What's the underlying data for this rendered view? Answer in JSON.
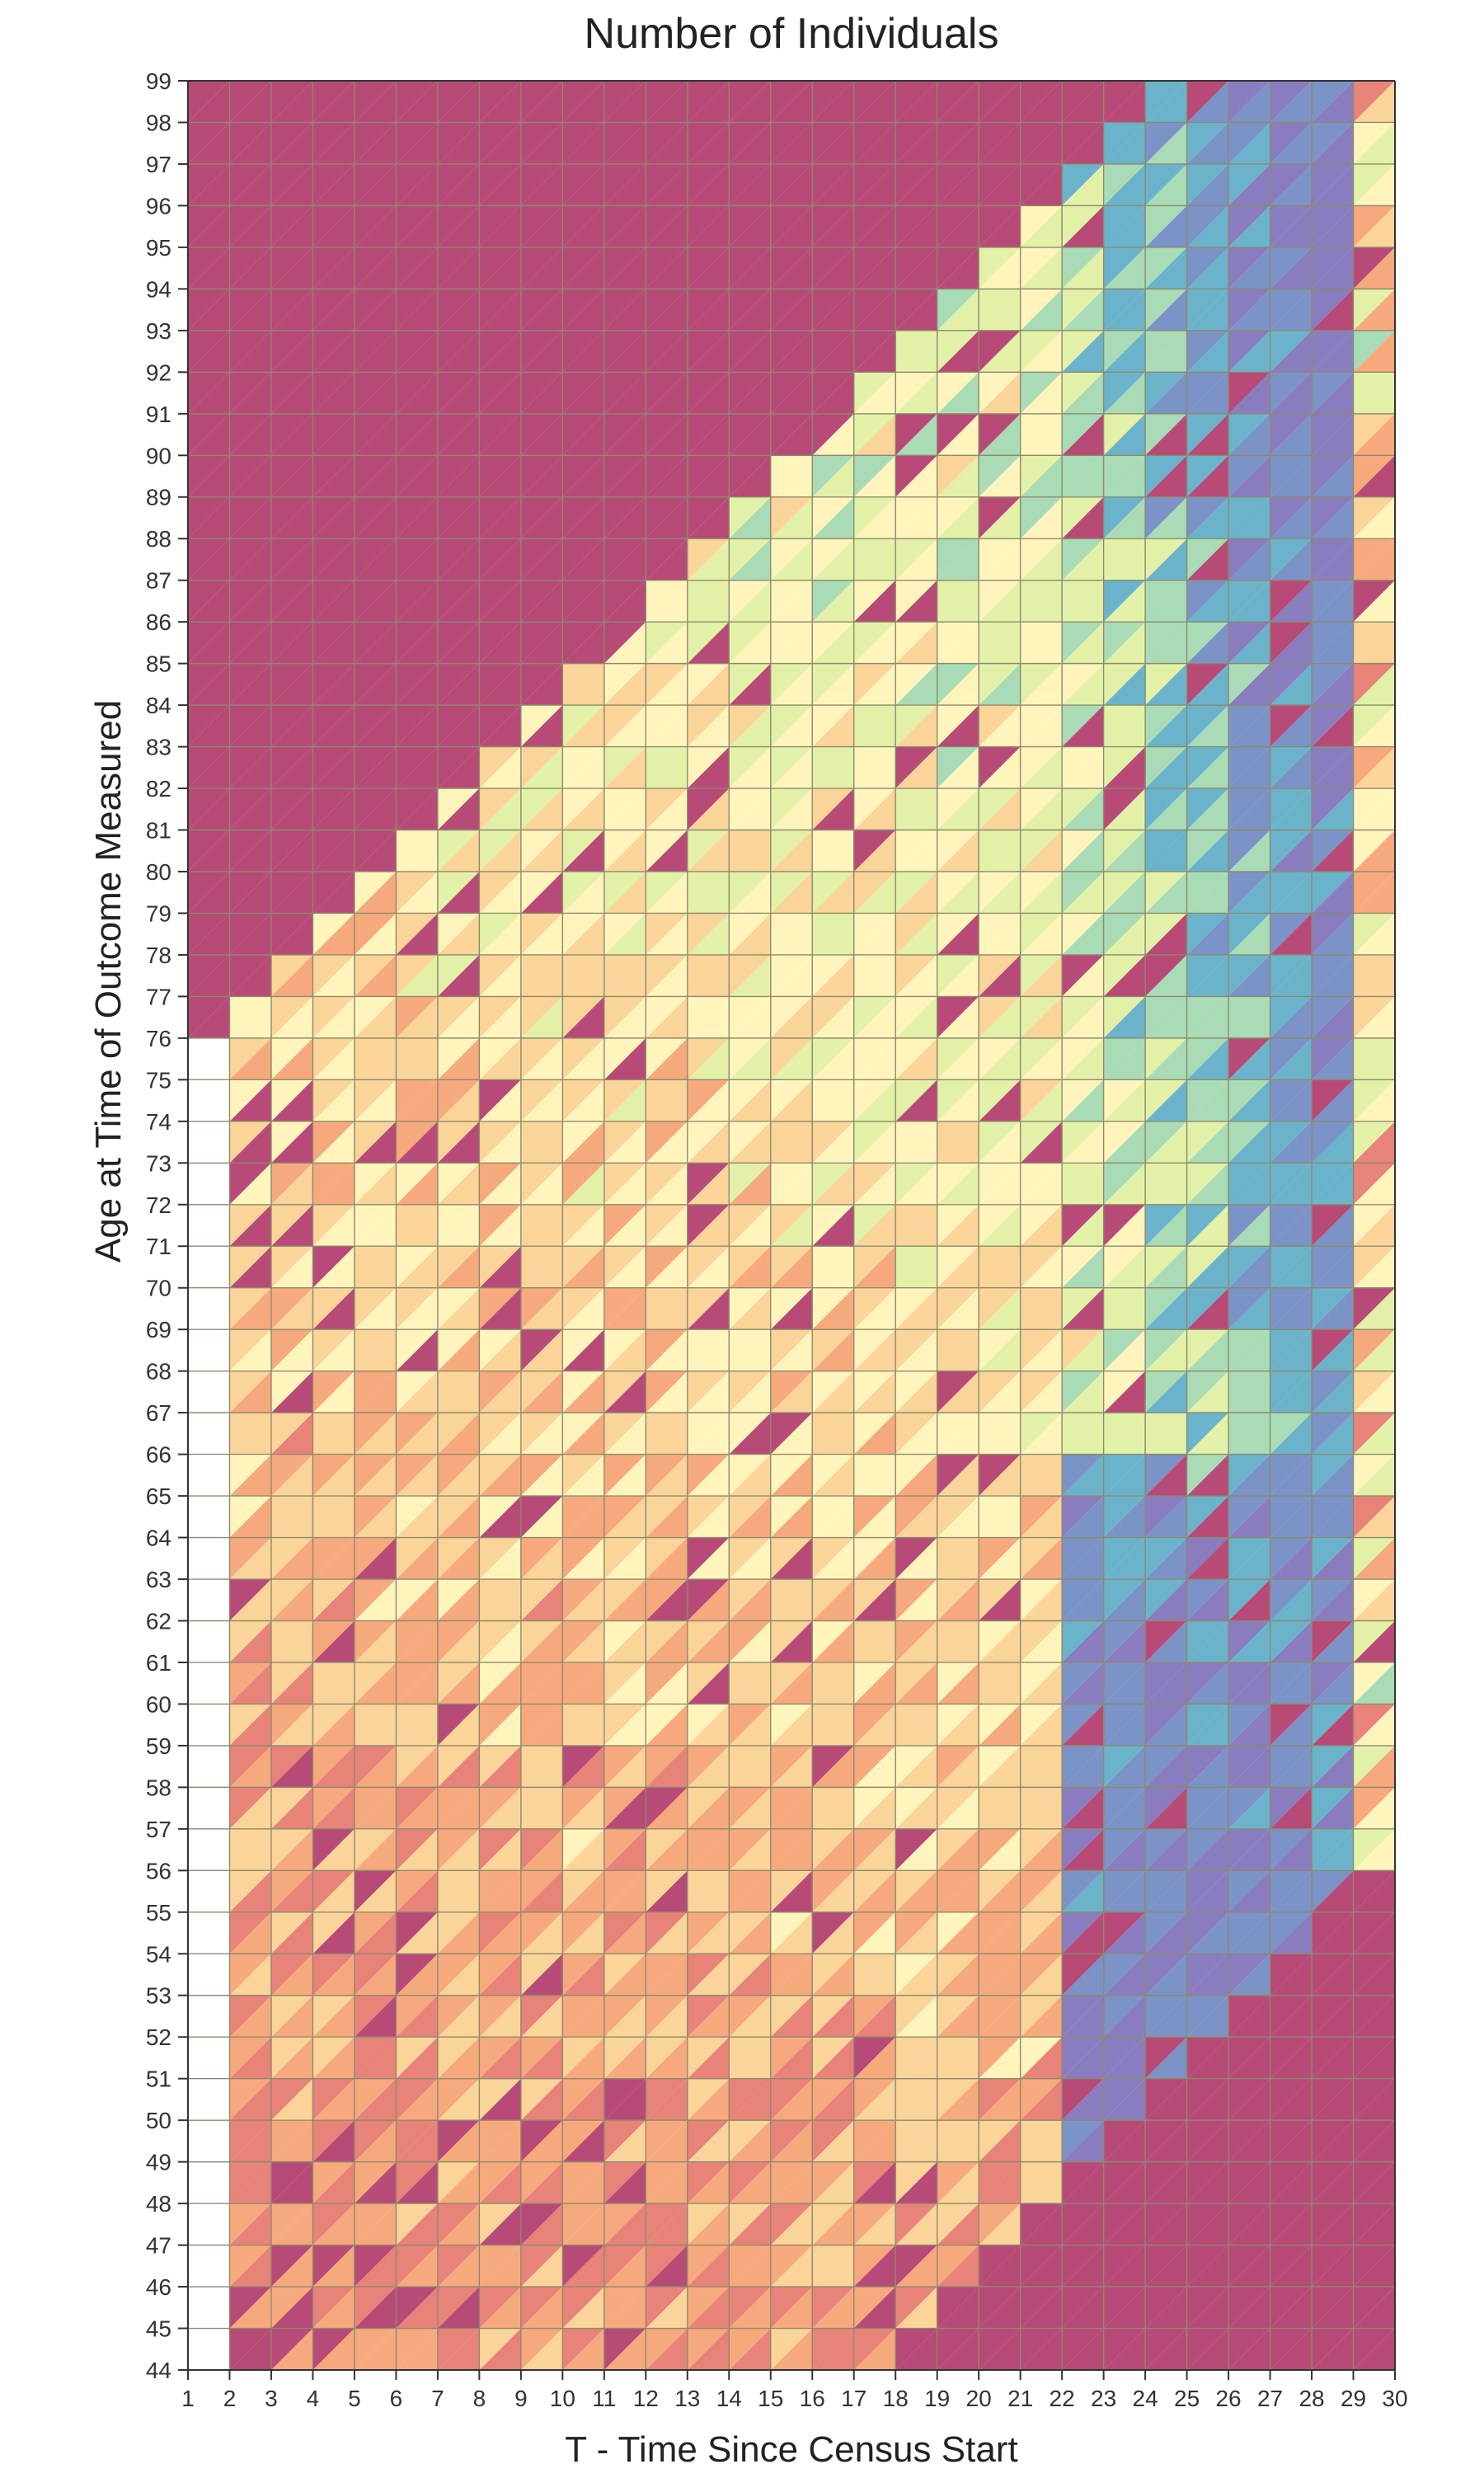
{
  "chart_data": {
    "type": "heatmap",
    "title": "Number of Individuals",
    "xlabel": "T - Time Since Census Start",
    "ylabel": "Age at Time of Outcome Measured",
    "x_ticks": [
      1,
      2,
      3,
      4,
      5,
      6,
      7,
      8,
      9,
      10,
      11,
      12,
      13,
      14,
      15,
      16,
      17,
      18,
      19,
      20,
      21,
      22,
      23,
      24,
      25,
      26,
      27,
      28,
      29,
      30
    ],
    "y_ticks": [
      44,
      45,
      46,
      47,
      48,
      49,
      50,
      51,
      52,
      53,
      54,
      55,
      56,
      57,
      58,
      59,
      60,
      61,
      62,
      63,
      64,
      65,
      66,
      67,
      68,
      69,
      70,
      71,
      72,
      73,
      74,
      75,
      76,
      77,
      78,
      79,
      80,
      81,
      82,
      83,
      84,
      85,
      86,
      87,
      88,
      89,
      90,
      91,
      92,
      93,
      94,
      95,
      96,
      97,
      98,
      99
    ],
    "xlim": [
      1,
      30
    ],
    "ylim": [
      44,
      99
    ],
    "legend": "none",
    "grid": true,
    "colorscale": "Spectral",
    "palette": [
      "#b84a78",
      "#e8837a",
      "#f7a97e",
      "#fbd49a",
      "#fff5bc",
      "#e3f1a8",
      "#a9dcb6",
      "#6bb3cb",
      "#7b93c7",
      "#8a7dbf"
    ],
    "grid_color": "#8c8a6c",
    "empty_color": "#b84a78",
    "triangles": {
      "stride": 28,
      "cols": 28,
      "rows": 54,
      "note_cols_from_x": 2,
      "note_rows_from_y": 45,
      "values": "see-script"
    }
  }
}
